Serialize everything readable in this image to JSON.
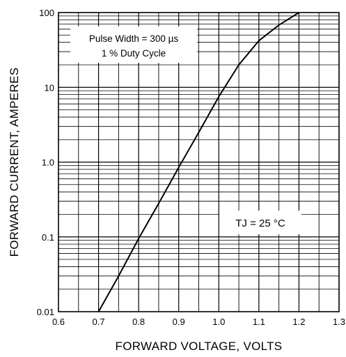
{
  "chart_data": {
    "type": "line",
    "xlabel": "FORWARD VOLTAGE, VOLTS",
    "ylabel": "FORWARD CURRENT, AMPERES",
    "xlim": [
      0.6,
      1.3
    ],
    "ylim": [
      0.01,
      100
    ],
    "yscale": "log",
    "grid": true,
    "x_ticks": [
      0.6,
      0.7,
      0.8,
      0.9,
      1.0,
      1.1,
      1.2,
      1.3
    ],
    "x_tick_labels": [
      "0.6",
      "0.7",
      "0.8",
      "0.9",
      "1.0",
      "1.1",
      "1.2",
      "1.3"
    ],
    "y_ticks": [
      0.01,
      0.1,
      1,
      10,
      100
    ],
    "y_tick_labels": [
      "0.01",
      "0.1",
      "1.0",
      "10",
      "100"
    ],
    "annotations": {
      "pulse_line1": "Pulse Width = 300 µs",
      "pulse_line2": "1 % Duty Cycle",
      "tj_label": "TJ = 25 °C"
    },
    "series": [
      {
        "x": [
          0.7,
          0.75,
          0.8,
          0.85,
          0.9,
          0.95,
          1.0,
          1.05,
          1.1,
          1.15,
          1.2
        ],
        "y": [
          0.01,
          0.03,
          0.095,
          0.28,
          0.85,
          2.5,
          7.5,
          20,
          42,
          68,
          100
        ]
      }
    ]
  }
}
